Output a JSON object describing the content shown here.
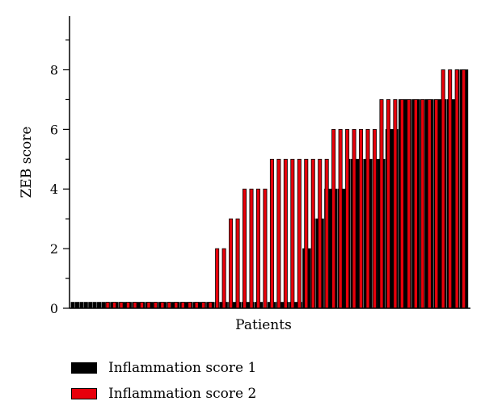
{
  "chart_data": {
    "type": "bar",
    "xlabel": "Patients",
    "ylabel": "ZEB score",
    "ylim": [
      0,
      9.8
    ],
    "yticks": [
      0,
      2,
      4,
      6,
      8
    ],
    "grid": false,
    "legend_position": "bottom-left",
    "colors": {
      "Inflammation score 1": "#000000",
      "Inflammation score 2": "#e8000b"
    },
    "series": [
      {
        "name": "Inflammation score 1",
        "values": [
          0.2,
          0.2,
          0.2,
          0.2,
          0.2,
          0.2,
          0.2,
          0.2,
          0.2,
          0.2,
          0.2,
          0.2,
          0.2,
          0.2,
          0.2,
          0.2,
          0.2,
          0.2,
          0.2,
          0.2,
          0.2,
          0.2,
          0.2,
          0.2,
          0.2,
          0.2,
          0.2,
          0.2,
          0.2,
          0.2,
          0.2,
          0.2,
          0.2,
          0.2,
          0.2,
          0.2,
          0.2,
          0.2,
          0.2,
          0.2,
          0.2,
          0.2,
          0.2,
          0.2,
          0.2,
          0.2,
          0.2,
          0.2,
          0.2,
          0.2,
          0.2,
          0.2,
          0.2,
          2,
          2,
          3,
          3,
          3,
          4,
          4,
          4,
          4,
          4,
          5,
          5,
          5,
          5,
          5,
          5,
          5,
          5,
          5,
          6,
          6,
          6,
          7,
          7,
          7,
          7,
          7,
          7,
          7,
          7,
          7,
          7,
          7,
          7,
          7,
          8,
          8,
          8
        ]
      },
      {
        "name": "Inflammation score 2",
        "values": [
          0.2,
          0.2,
          0.2,
          0.2,
          0.2,
          0.2,
          0.2,
          0.2,
          0.2,
          0.2,
          0.2,
          0.2,
          0.2,
          0.2,
          0.2,
          0.2,
          2,
          2,
          3,
          3,
          4,
          4,
          4,
          4,
          5,
          5,
          5,
          5,
          5,
          5,
          5,
          5,
          5,
          6,
          6,
          6,
          6,
          6,
          6,
          6,
          7,
          7,
          7,
          7,
          7,
          7,
          7,
          7,
          7,
          8,
          8,
          8,
          8
        ]
      }
    ]
  },
  "legend": {
    "items": [
      {
        "label": "Inflammation score 1",
        "color": "#000000"
      },
      {
        "label": "Inflammation score 2",
        "color": "#e8000b"
      }
    ]
  }
}
